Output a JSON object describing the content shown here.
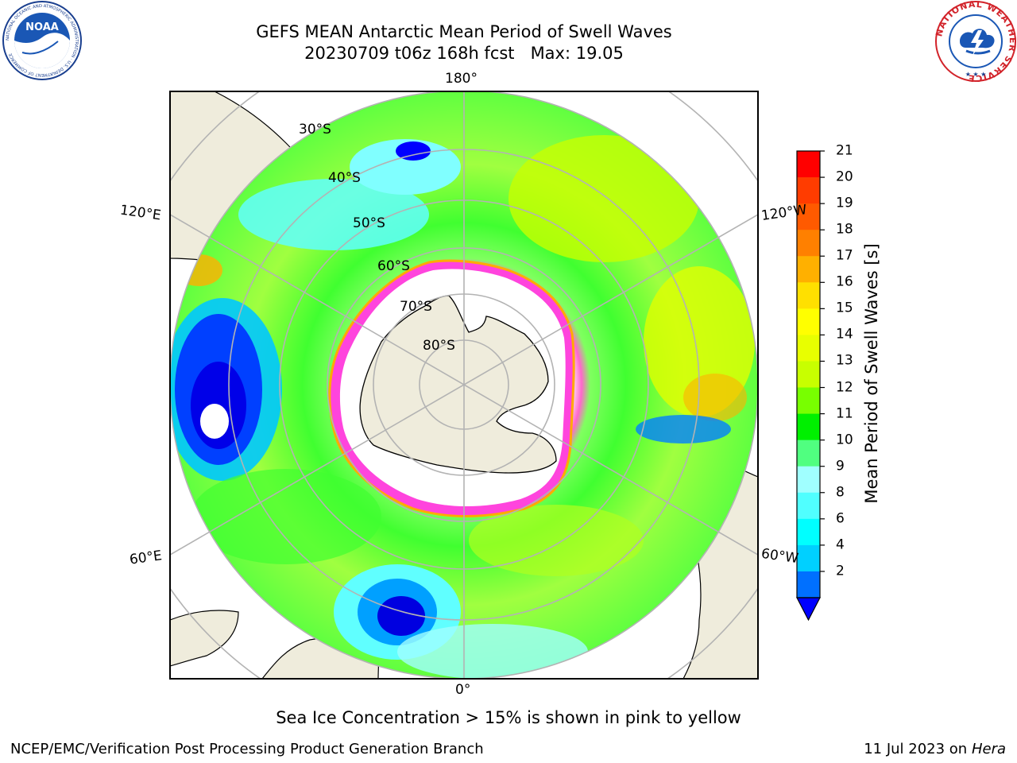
{
  "title": {
    "line1": "GEFS MEAN Antarctic Mean Period of Swell Waves",
    "line2": "20230709 t06z 168h fcst   Max: 19.05"
  },
  "map": {
    "projection": "south-polar-stereographic",
    "lon_labels": {
      "top": "180°",
      "bottom": "0°",
      "left_upper": "120°E",
      "left_lower": "60°E",
      "right_upper": "120°W",
      "right_lower": "60°W"
    },
    "lat_labels": [
      "30°S",
      "40°S",
      "50°S",
      "60°S",
      "70°S",
      "80°S"
    ],
    "land_color": "#efecdc",
    "gridline_color": "#b3b3b3"
  },
  "colorbar": {
    "label": "Mean Period of Swell Waves [s]",
    "ticks": [
      "21",
      "20",
      "19",
      "18",
      "17",
      "16",
      "15",
      "14",
      "13",
      "12",
      "11",
      "10",
      "9",
      "8",
      "6",
      "4",
      "2"
    ],
    "colors": [
      "#ff0000",
      "#ff3c00",
      "#ff5a00",
      "#ff8000",
      "#ffb000",
      "#ffe000",
      "#ffff00",
      "#e8ff00",
      "#c8ff00",
      "#78ff00",
      "#00f000",
      "#50ff80",
      "#a0ffff",
      "#50ffff",
      "#00ffff",
      "#00d0ff",
      "#0070ff"
    ],
    "extend_color": "#0000ff"
  },
  "footer": {
    "note": "Sea Ice Concentration > 15% is shown in pink to yellow",
    "left": "NCEP/EMC/Verification Post Processing Product Generation Branch",
    "right_date": "11 Jul 2023 on ",
    "right_host": "Hera"
  },
  "logos": {
    "left_name": "NOAA",
    "left_text": "NOAA",
    "left_ring_text": "NATIONAL OCEANIC AND ATMOSPHERIC ADMINISTRATION · U.S. DEPARTMENT OF COMMERCE",
    "right_name": "NWS",
    "right_ring_text": "NATIONAL WEATHER SERVICE"
  }
}
